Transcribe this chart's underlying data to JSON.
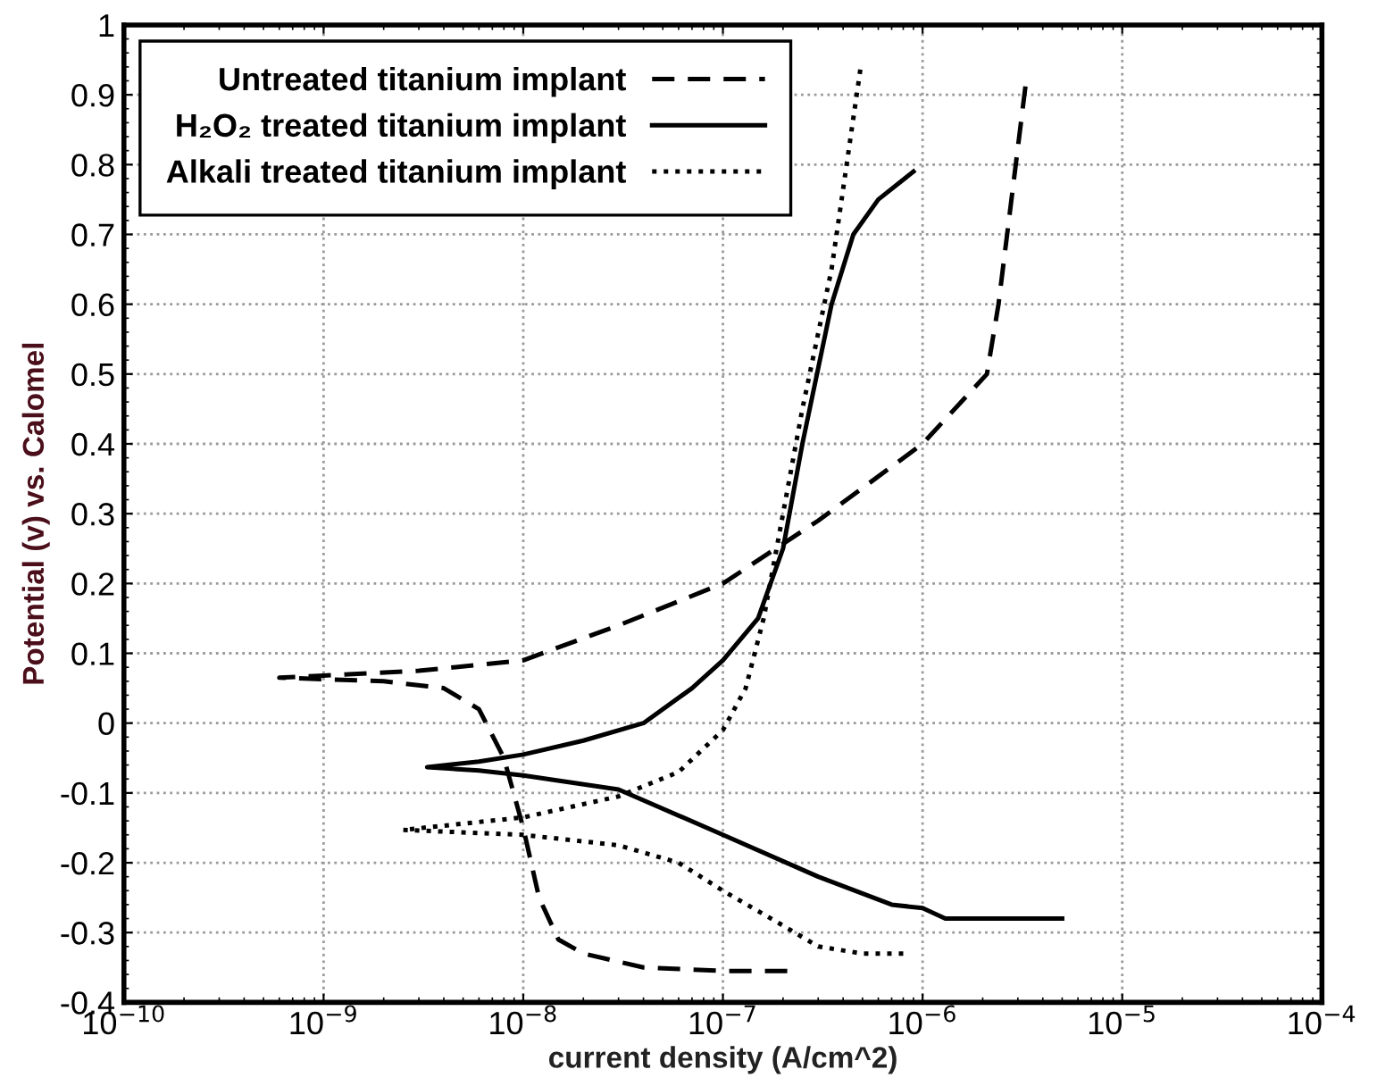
{
  "chart_data": {
    "type": "line",
    "xlabel": "current density (A/cm^2)",
    "ylabel": "Potential (v) vs. Calomel",
    "log": "x",
    "grid": true,
    "legend": "top left",
    "marker": "none",
    "xlim": [
      1e-10,
      0.0001
    ],
    "xticks": [
      {
        "value": 1e-10,
        "label": "10$^{−10}$"
      },
      {
        "value": 1e-09,
        "label": "10$^{−9}$"
      },
      {
        "value": 1e-08,
        "label": "10$^{−8}$"
      },
      {
        "value": 1e-07,
        "label": "10$^{−7}$"
      },
      {
        "value": 1e-06,
        "label": "10$^{−6}$"
      },
      {
        "value": 1e-05,
        "label": "10$^{−5}$"
      },
      {
        "value": 0.0001,
        "label": "10$^{−4}$"
      }
    ],
    "ylim": [
      -0.4,
      1
    ],
    "yticks": [
      -0.4,
      -0.3,
      -0.2,
      -0.1,
      0,
      0.1,
      0.2,
      0.3,
      0.4,
      0.5,
      0.6,
      0.7,
      0.8,
      0.9,
      1
    ],
    "series": [
      {
        "name": "Untreated titanium implant",
        "color": "#000000",
        "line_style": "dashed",
        "x": [
          2.1e-07,
          1e-07,
          4e-08,
          2e-08,
          1.5e-08,
          1.2e-08,
          1e-08,
          8e-09,
          6e-09,
          4e-09,
          2e-09,
          6e-10,
          1e-09,
          3e-09,
          1e-08,
          3e-08,
          1e-07,
          3e-07,
          1e-06,
          2.1e-06,
          2.4e-06,
          3.3e-06
        ],
        "values": [
          -0.355,
          -0.355,
          -0.35,
          -0.33,
          -0.31,
          -0.25,
          -0.15,
          -0.05,
          0.02,
          0.05,
          0.06,
          0.065,
          0.068,
          0.075,
          0.09,
          0.14,
          0.2,
          0.29,
          0.4,
          0.5,
          0.6,
          0.92
        ]
      },
      {
        "name": "H₂O₂ treated titanium implant",
        "color": "#000000",
        "line_style": "solid",
        "x": [
          5e-06,
          1.3e-06,
          1e-06,
          7e-07,
          3e-07,
          1e-07,
          3e-08,
          1e-08,
          6e-09,
          3.3e-09,
          6e-09,
          1e-08,
          2e-08,
          4e-08,
          7e-08,
          1e-07,
          1.5e-07,
          2e-07,
          2.5e-07,
          3.5e-07,
          4.5e-07,
          6e-07,
          9e-07
        ],
        "values": [
          -0.28,
          -0.28,
          -0.265,
          -0.26,
          -0.22,
          -0.16,
          -0.095,
          -0.075,
          -0.068,
          -0.063,
          -0.055,
          -0.045,
          -0.025,
          0.0,
          0.05,
          0.09,
          0.15,
          0.25,
          0.4,
          0.6,
          0.7,
          0.75,
          0.79
        ]
      },
      {
        "name": "Alkali treated titanium implant",
        "color": "#000000",
        "line_style": "dotted",
        "x": [
          8e-07,
          5e-07,
          3e-07,
          2e-07,
          1e-07,
          6e-08,
          3e-08,
          1e-08,
          2.5e-09,
          1e-08,
          3e-08,
          6e-08,
          1e-07,
          1.3e-07,
          1.6e-07,
          2e-07,
          2.5e-07,
          3.5e-07,
          4.9e-07
        ],
        "values": [
          -0.33,
          -0.33,
          -0.32,
          -0.29,
          -0.24,
          -0.2,
          -0.175,
          -0.16,
          -0.153,
          -0.135,
          -0.105,
          -0.07,
          -0.01,
          0.05,
          0.15,
          0.3,
          0.45,
          0.65,
          0.94
        ]
      }
    ]
  }
}
